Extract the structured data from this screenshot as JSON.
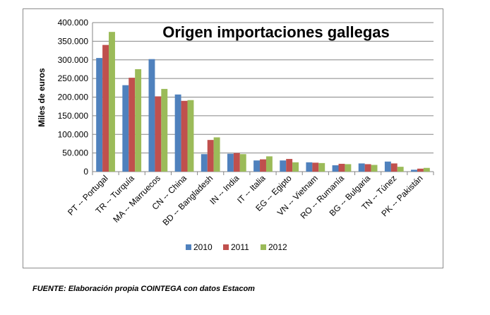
{
  "chart_data": {
    "type": "bar",
    "title": "Origen importaciones gallegas",
    "xlabel": "",
    "ylabel": "Miles de euros",
    "ylim": [
      0,
      400000
    ],
    "yticks": [
      "0",
      "50.000",
      "100.000",
      "150.000",
      "200.000",
      "250.000",
      "300.000",
      "350.000",
      "400.000"
    ],
    "grid": true,
    "legend_position": "bottom",
    "categories": [
      "PT -- Portugal",
      "TR -- Turquía",
      "MA -- Marruecos",
      "CN -- China",
      "BD -- Bangladesh",
      "IN -- India",
      "IT -- Italia",
      "EG -- Egipto",
      "VN -- Vietnam",
      "RO -- Rumanía",
      "BG -- Bulgaria",
      "TN -- Túnez",
      "PK -- Pakistán"
    ],
    "series": [
      {
        "name": "2010",
        "color": "#4f81bd",
        "values": [
          305000,
          232000,
          302000,
          207000,
          47000,
          48000,
          30000,
          30000,
          25000,
          17000,
          22000,
          27000,
          5000
        ]
      },
      {
        "name": "2011",
        "color": "#c0504d",
        "values": [
          340000,
          252000,
          202000,
          190000,
          85000,
          50000,
          33000,
          34000,
          24000,
          21000,
          20000,
          22000,
          8000
        ]
      },
      {
        "name": "2012",
        "color": "#9bbb59",
        "values": [
          375000,
          275000,
          222000,
          192000,
          92000,
          47000,
          41000,
          25000,
          23000,
          20000,
          18000,
          13000,
          10000
        ]
      }
    ]
  },
  "source_note": "FUENTE: Elaboración propia COINTEGA con datos Estacom"
}
